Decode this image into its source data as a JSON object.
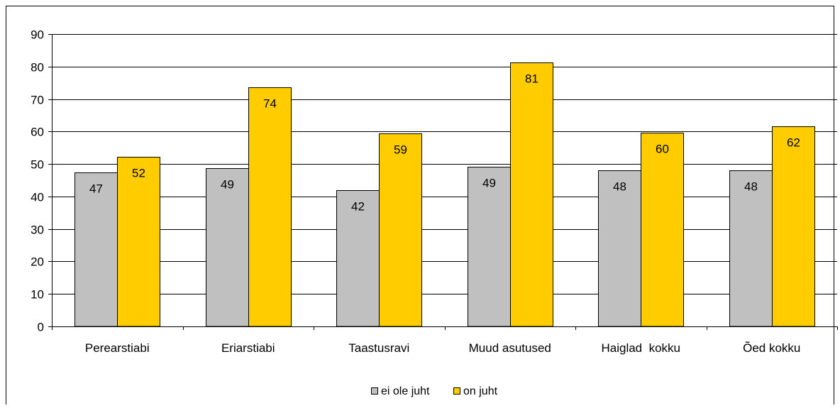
{
  "chart_data": {
    "type": "bar",
    "title": "",
    "xlabel": "",
    "ylabel": "",
    "categories": [
      "Perearstiabi",
      "Eriarstiabi",
      "Taastusravi",
      "Muud asutused",
      "Haiglad  kokku",
      "Õed kokku"
    ],
    "series": [
      {
        "name": "ei ole juht",
        "values": [
          47.5,
          48.8,
          42,
          49.2,
          48,
          48
        ],
        "labels": [
          "47",
          "49",
          "42",
          "49",
          "48",
          "48"
        ],
        "color": "#c0c0c0"
      },
      {
        "name": "on juht",
        "values": [
          52.2,
          73.6,
          59.4,
          81.3,
          59.6,
          61.7
        ],
        "labels": [
          "52",
          "74",
          "59",
          "81",
          "60",
          "62"
        ],
        "color": "#ffcc00"
      }
    ],
    "ylim": [
      0,
      90
    ],
    "yticks": [
      "0",
      "10",
      "20",
      "30",
      "40",
      "50",
      "60",
      "70",
      "80",
      "90"
    ],
    "grid": true,
    "legend_position": "bottom"
  }
}
